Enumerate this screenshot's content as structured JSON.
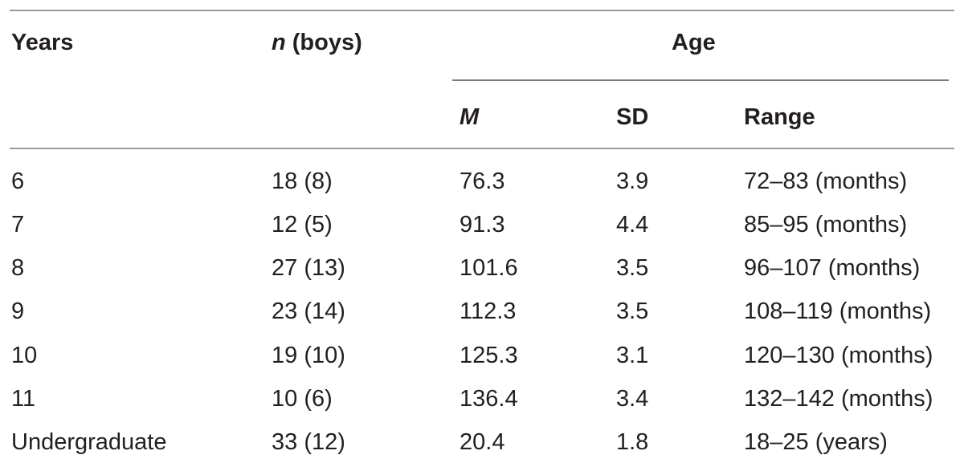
{
  "headers": {
    "years": "Years",
    "n_italic": "n",
    "n_rest": " (boys)",
    "age_group": "Age",
    "m": "M",
    "sd": "SD",
    "range": "Range"
  },
  "rows": [
    {
      "years": "6",
      "n": "18 (8)",
      "m": "76.3",
      "sd": "3.9",
      "range": "72–83 (months)"
    },
    {
      "years": "7",
      "n": "12 (5)",
      "m": "91.3",
      "sd": "4.4",
      "range": "85–95 (months)"
    },
    {
      "years": "8",
      "n": "27 (13)",
      "m": "101.6",
      "sd": "3.5",
      "range": "96–107 (months)"
    },
    {
      "years": "9",
      "n": "23 (14)",
      "m": "112.3",
      "sd": "3.5",
      "range": "108–119 (months)"
    },
    {
      "years": "10",
      "n": "19 (10)",
      "m": "125.3",
      "sd": "3.1",
      "range": "120–130 (months)"
    },
    {
      "years": "11",
      "n": "10 (6)",
      "m": "136.4",
      "sd": "3.4",
      "range": "132–142 (months)"
    },
    {
      "years": "Undergraduate",
      "n": "33 (12)",
      "m": "20.4",
      "sd": "1.8",
      "range": "18–25 (years)"
    }
  ]
}
